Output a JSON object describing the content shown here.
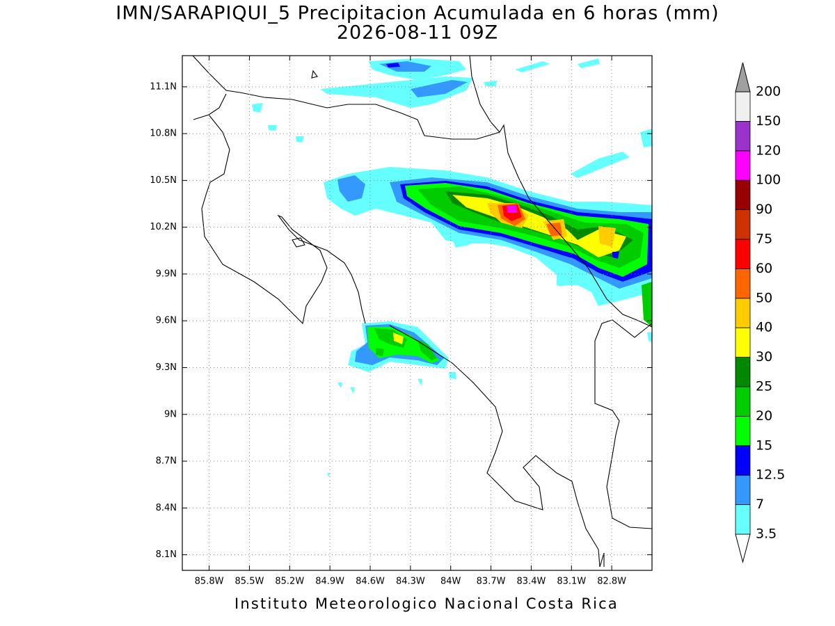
{
  "title": "IMN/SARAPIQUI_5 Precipitacion Acumulada en 6 horas (mm)",
  "subtitle": "2026-08-11 09Z",
  "map": {
    "xlim": [
      -86.0,
      -82.5
    ],
    "ylim": [
      8.0,
      11.3
    ],
    "grid": true,
    "xticks": [
      {
        "value": -85.8,
        "label": "85.8W"
      },
      {
        "value": -85.5,
        "label": "85.5W"
      },
      {
        "value": -85.2,
        "label": "85.2W"
      },
      {
        "value": -84.9,
        "label": "84.9W"
      },
      {
        "value": -84.6,
        "label": "84.6W"
      },
      {
        "value": -84.3,
        "label": "84.3W"
      },
      {
        "value": -84,
        "label": "84W"
      },
      {
        "value": -83.7,
        "label": "83.7W"
      },
      {
        "value": -83.4,
        "label": "83.4W"
      },
      {
        "value": -83.1,
        "label": "83.1W"
      },
      {
        "value": -82.8,
        "label": "82.8W"
      }
    ],
    "yticks": [
      {
        "value": 8.1,
        "label": "8.1N"
      },
      {
        "value": 8.4,
        "label": "8.4N"
      },
      {
        "value": 8.7,
        "label": "8.7N"
      },
      {
        "value": 9,
        "label": "9N"
      },
      {
        "value": 9.3,
        "label": "9.3N"
      },
      {
        "value": 9.6,
        "label": "9.6N"
      },
      {
        "value": 9.9,
        "label": "9.9N"
      },
      {
        "value": 10.2,
        "label": "10.2N"
      },
      {
        "value": 10.5,
        "label": "10.5N"
      },
      {
        "value": 10.8,
        "label": "10.8N"
      },
      {
        "value": 11.1,
        "label": "11.1N"
      }
    ]
  },
  "legend": {
    "levels": [
      3.5,
      7,
      12.5,
      15,
      20,
      25,
      30,
      40,
      50,
      60,
      75,
      90,
      100,
      120,
      150,
      200
    ],
    "colors": [
      "#ffffff",
      "#66ffff",
      "#3399ff",
      "#0000ff",
      "#00ff00",
      "#00cc00",
      "#008800",
      "#ffff00",
      "#ffcc00",
      "#ff6600",
      "#ff0000",
      "#cc3300",
      "#990000",
      "#ff00ff",
      "#9933cc",
      "#f0f0f0",
      "#a0a0a0"
    ]
  },
  "footer": "Instituto Meteorologico Nacional Costa Rica"
}
